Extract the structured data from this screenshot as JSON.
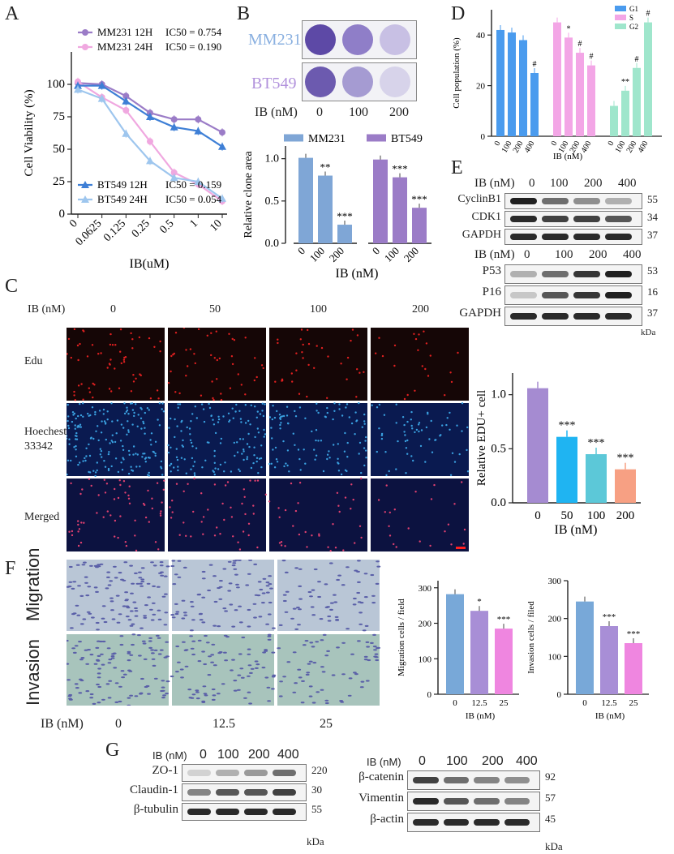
{
  "panels": {
    "A": {
      "letter": "A",
      "chart_data": {
        "type": "line",
        "xlabel": "IB(uM)",
        "ylabel": "Cell Viability (%)",
        "categories": [
          "0",
          "0.0625",
          "0.125",
          "0.25",
          "0.5",
          "1",
          "10"
        ],
        "y_ticks": [
          "0",
          "25",
          "50",
          "75",
          "100"
        ],
        "ylim": [
          0,
          125
        ],
        "series": [
          {
            "name": "MM231 12H",
            "ic50": "IC50 = 0.754",
            "color": "#9b7cc7",
            "marker": "circle",
            "values": [
              101,
              100,
              91,
              78,
              73,
              73,
              63
            ]
          },
          {
            "name": "MM231 24H",
            "ic50": "IC50 = 0.190",
            "color": "#f0a8e0",
            "marker": "circle",
            "values": [
              102,
              90,
              80,
              56,
              32,
              23,
              10
            ]
          },
          {
            "name": "BT549 12H",
            "ic50": "IC50 = 0.159",
            "color": "#3e7fd6",
            "marker": "triangle",
            "values": [
              99,
              99,
              87,
              75,
              67,
              64,
              52
            ]
          },
          {
            "name": "BT549 24H",
            "ic50": "IC50 = 0.054",
            "color": "#9ec6ee",
            "marker": "triangle",
            "values": [
              96,
              89,
              62,
              41,
              28,
              25,
              12
            ]
          }
        ]
      }
    },
    "B": {
      "letter": "B",
      "cell_labels": [
        "MM231",
        "BT549"
      ],
      "ib_label": "IB (nM)",
      "doses": [
        "0",
        "100",
        "200"
      ],
      "chart_data": {
        "type": "bar",
        "ylabel": "Relative clone area",
        "xlabel": "IB (nM)",
        "y_ticks": [
          "0.0",
          "0.5",
          "1.0"
        ],
        "ylim": [
          0,
          1.15
        ],
        "categories": [
          "0",
          "100",
          "200"
        ],
        "series": [
          {
            "name": "MM231",
            "color": "#7fa6d6",
            "values": [
              1.01,
              0.8,
              0.22
            ],
            "sig": [
              "",
              "**",
              "***"
            ]
          },
          {
            "name": "BT549",
            "color": "#9b7cc7",
            "values": [
              0.99,
              0.78,
              0.42
            ],
            "sig": [
              "",
              "***",
              "***"
            ]
          }
        ]
      }
    },
    "C": {
      "letter": "C",
      "ib_label": "IB (nM)",
      "doses": [
        "0",
        "50",
        "100",
        "200"
      ],
      "row_labels": [
        "Edu",
        "Hoechest 33342",
        "Merged"
      ],
      "chart_data": {
        "type": "bar",
        "ylabel": "Relative EDU+ cell",
        "xlabel": "IB (nM)",
        "y_ticks": [
          "0.0",
          "0.5",
          "1.0"
        ],
        "ylim": [
          0,
          1.2
        ],
        "categories": [
          "0",
          "50",
          "100",
          "200"
        ],
        "values": [
          1.06,
          0.61,
          0.45,
          0.31
        ],
        "colors": [
          "#a58bd1",
          "#1fb4f2",
          "#5cc8d8",
          "#f7a083"
        ],
        "sig": [
          "",
          "***",
          "***",
          "***"
        ]
      }
    },
    "D": {
      "letter": "D",
      "chart_data": {
        "type": "bar",
        "ylabel": "Cell population (%)",
        "xlabel": "IB (nM)",
        "y_ticks": [
          "0",
          "20",
          "40"
        ],
        "ylim": [
          0,
          50
        ],
        "categories": [
          "0",
          "100",
          "200",
          "400"
        ],
        "series": [
          {
            "name": "G1",
            "color": "#4a9bee",
            "values": [
              42,
              41,
              38,
              25
            ],
            "sig": [
              "",
              "",
              "",
              "#"
            ]
          },
          {
            "name": "S",
            "color": "#f3a6e6",
            "values": [
              45,
              39,
              33,
              28
            ],
            "sig": [
              "",
              "*",
              "#",
              "#"
            ]
          },
          {
            "name": "G2",
            "color": "#9fe6cc",
            "values": [
              12,
              18,
              27,
              45
            ],
            "sig": [
              "",
              "**",
              "#",
              "#"
            ]
          }
        ]
      }
    },
    "E": {
      "letter": "E",
      "ib_label": "IB (nM)",
      "doses": [
        "0",
        "100",
        "200",
        "400"
      ],
      "blots_top": [
        {
          "name": "CyclinB1",
          "kda": "55"
        },
        {
          "name": "CDK1",
          "kda": "34"
        },
        {
          "name": "GAPDH",
          "kda": "37"
        }
      ],
      "blots_bottom": [
        {
          "name": "P53",
          "kda": "53"
        },
        {
          "name": "P16",
          "kda": "16"
        },
        {
          "name": "GAPDH",
          "kda": "37"
        }
      ],
      "kda_unit": "kDa"
    },
    "F": {
      "letter": "F",
      "row_labels": [
        "Migration",
        "Invasion"
      ],
      "ib_label": "IB (nM)",
      "doses": [
        "0",
        "12.5",
        "25"
      ],
      "chart_migration": {
        "type": "bar",
        "ylabel": "Migration cells / field",
        "xlabel": "IB (nM)",
        "y_ticks": [
          "0",
          "100",
          "200",
          "300"
        ],
        "ylim": [
          0,
          320
        ],
        "categories": [
          "0",
          "12.5",
          "25"
        ],
        "values": [
          282,
          235,
          185
        ],
        "colors": [
          "#78a8d8",
          "#a88ed6",
          "#ef86e0"
        ],
        "sig": [
          "",
          "*",
          "***"
        ]
      },
      "chart_invasion": {
        "type": "bar",
        "ylabel": "Invasion cells / filed",
        "xlabel": "IB (nM)",
        "y_ticks": [
          "0",
          "100",
          "200",
          "300"
        ],
        "ylim": [
          0,
          300
        ],
        "categories": [
          "0",
          "12.5",
          "25"
        ],
        "values": [
          245,
          180,
          135
        ],
        "colors": [
          "#78a8d8",
          "#a88ed6",
          "#ef86e0"
        ],
        "sig": [
          "",
          "***",
          "***"
        ]
      }
    },
    "G": {
      "letter": "G",
      "ib_label": "IB (nM)",
      "doses": [
        "0",
        "100",
        "200",
        "400"
      ],
      "left_blots": [
        {
          "name": "ZO-1",
          "kda": "220"
        },
        {
          "name": "Claudin-1",
          "kda": "30"
        },
        {
          "name": "β-tubulin",
          "kda": "55"
        }
      ],
      "right_blots": [
        {
          "name": "β-catenin",
          "kda": "92"
        },
        {
          "name": "Vimentin",
          "kda": "57"
        },
        {
          "name": "β-actin",
          "kda": "45"
        }
      ],
      "kda_unit": "kDa"
    }
  }
}
